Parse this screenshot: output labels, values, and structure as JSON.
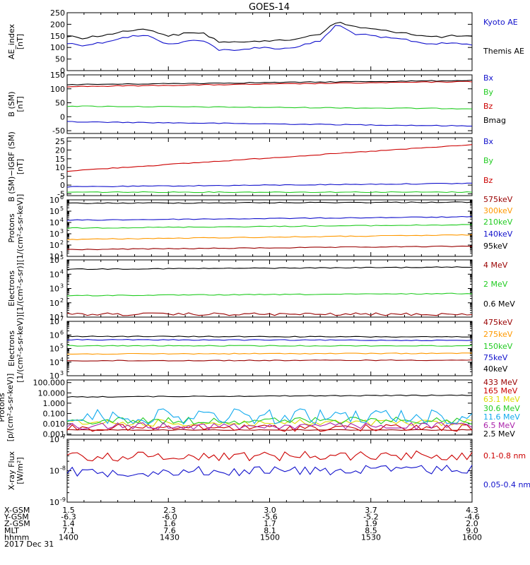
{
  "title": "GOES-14",
  "footer": {
    "rows": [
      {
        "label": "X-GSM",
        "values": [
          "1.5",
          "2.3",
          "3.0",
          "3.7",
          "4.3"
        ]
      },
      {
        "label": "Y-GSM",
        "values": [
          "-6.3",
          "-6.0",
          "-5.6",
          "-5.2",
          "-4.6"
        ]
      },
      {
        "label": "Z-GSM",
        "values": [
          "1.4",
          "1.6",
          "1.7",
          "1.9",
          "2.0"
        ]
      },
      {
        "label": "MLT",
        "values": [
          "7.1",
          "7.6",
          "8.1",
          "8.5",
          "9.0"
        ]
      },
      {
        "label": "hhmm",
        "values": [
          "1400",
          "1430",
          "1500",
          "1530",
          "1600"
        ]
      }
    ],
    "date": "2017 Dec 31"
  },
  "colors": {
    "black": "#000000",
    "red": "#cc0000",
    "green": "#22cc22",
    "blue": "#1111cc",
    "orange": "#ff9900",
    "cyan": "#11aaee",
    "yellow": "#dddd00",
    "purple": "#aa22aa",
    "maroon": "#990000"
  },
  "chart_data": [
    {
      "type": "line",
      "panel": "ae",
      "ylabel": [
        "AE_index",
        "[nT]"
      ],
      "ylim": [
        0,
        250
      ],
      "scale": "linear",
      "ticks": [
        0,
        50,
        100,
        150,
        200,
        250
      ],
      "tick_labels": [
        "0",
        "50",
        "100",
        "150",
        "200",
        "250"
      ],
      "x": [
        1400,
        1405,
        1410,
        1415,
        1420,
        1425,
        1430,
        1435,
        1440,
        1445,
        1450,
        1455,
        1500,
        1505,
        1510,
        1515,
        1520,
        1525,
        1530,
        1535,
        1540,
        1545,
        1550,
        1555,
        1600
      ],
      "series": [
        {
          "name": "Kyoto AE",
          "color": "#1111cc",
          "values": [
            118,
            110,
            120,
            138,
            150,
            148,
            112,
            125,
            135,
            90,
            85,
            100,
            98,
            95,
            110,
            128,
            200,
            160,
            150,
            140,
            135,
            120,
            115,
            120,
            110
          ]
        },
        {
          "name": "Themis AE",
          "color": "#000000",
          "values": [
            150,
            140,
            150,
            165,
            178,
            175,
            150,
            160,
            165,
            125,
            120,
            130,
            130,
            128,
            145,
            160,
            210,
            190,
            180,
            170,
            165,
            150,
            145,
            150,
            145
          ]
        }
      ]
    },
    {
      "type": "line",
      "panel": "bsm",
      "ylabel": [
        "B (SM)",
        "[nT]"
      ],
      "ylim": [
        -60,
        150
      ],
      "scale": "linear",
      "ticks": [
        -50,
        0,
        50,
        100,
        150
      ],
      "tick_labels": [
        "-50",
        "0",
        "50",
        "100",
        "150"
      ],
      "x": [
        1400,
        1600
      ],
      "series": [
        {
          "name": "Bx",
          "color": "#1111cc",
          "values": [
            -18,
            -33
          ]
        },
        {
          "name": "By",
          "color": "#22cc22",
          "values": [
            38,
            29
          ]
        },
        {
          "name": "Bz",
          "color": "#cc0000",
          "values": [
            108,
            126
          ]
        },
        {
          "name": "Bmag",
          "color": "#000000",
          "values": [
            115,
            130
          ]
        }
      ]
    },
    {
      "type": "line",
      "panel": "bigrf",
      "ylabel": [
        "B (SM)−IGRF (SM)",
        "[nT]"
      ],
      "ylim": [
        -6,
        27
      ],
      "scale": "linear",
      "ticks": [
        -5,
        0,
        5,
        10,
        15,
        20,
        25
      ],
      "tick_labels": [
        "-5",
        "0",
        "5",
        "10",
        "15",
        "20",
        "25"
      ],
      "x": [
        1400,
        1600
      ],
      "series": [
        {
          "name": "Bx",
          "color": "#1111cc",
          "values": [
            -1,
            1
          ]
        },
        {
          "name": "By",
          "color": "#22cc22",
          "values": [
            -4,
            -4
          ]
        },
        {
          "name": "Bz",
          "color": "#cc0000",
          "values": [
            8,
            23
          ]
        }
      ]
    },
    {
      "type": "line",
      "panel": "protons_kev",
      "ylabel": [
        "Protons",
        "[1/(cm²-s-sr-keV)]"
      ],
      "ylim": [
        1,
        6
      ],
      "scale": "log",
      "ticks": [
        1,
        2,
        3,
        4,
        5,
        6
      ],
      "tick_labels": [
        "10",
        "10",
        "10",
        "10",
        "10",
        "10"
      ],
      "tick_sups": [
        "1",
        "2",
        "3",
        "4",
        "5",
        "6"
      ],
      "x": [
        1400,
        1600
      ],
      "series": [
        {
          "name": "575keV",
          "color": "#990000",
          "values": [
            1.6,
            1.9
          ]
        },
        {
          "name": "300keV",
          "color": "#ff9900",
          "values": [
            2.5,
            2.9
          ]
        },
        {
          "name": "210keV",
          "color": "#22cc22",
          "values": [
            3.5,
            3.8
          ]
        },
        {
          "name": "140keV",
          "color": "#1111cc",
          "values": [
            4.2,
            4.5
          ]
        },
        {
          "name": "95keV",
          "color": "#000000",
          "values": [
            5.7,
            5.8
          ]
        }
      ]
    },
    {
      "type": "line",
      "panel": "electrons_mev",
      "ylabel": [
        "Electrons",
        "[1/(cm²-s-sr)]"
      ],
      "ylim": [
        1,
        5
      ],
      "scale": "log",
      "ticks": [
        1,
        2,
        3,
        4,
        5
      ],
      "tick_labels": [
        "10",
        "10",
        "10",
        "10",
        "10"
      ],
      "tick_sups": [
        "1",
        "2",
        "3",
        "4",
        "5"
      ],
      "x": [
        1400,
        1600
      ],
      "series": [
        {
          "name": "4 MeV",
          "color": "#990000",
          "values": [
            1.2,
            1.2
          ]
        },
        {
          "name": "2 MeV",
          "color": "#22cc22",
          "values": [
            2.5,
            2.65
          ]
        },
        {
          "name": "0.6 MeV",
          "color": "#000000",
          "values": [
            4.35,
            4.5
          ]
        }
      ]
    },
    {
      "type": "line",
      "panel": "electrons_kev",
      "ylabel": [
        "Electrons",
        "[1/(cm²-s-sr-keV)]"
      ],
      "ylim": [
        3,
        7
      ],
      "scale": "log",
      "ticks": [
        3,
        4,
        5,
        6,
        7
      ],
      "tick_labels": [
        "10",
        "10",
        "10",
        "10",
        "10"
      ],
      "tick_sups": [
        "3",
        "4",
        "5",
        "6",
        "7"
      ],
      "x": [
        1400,
        1600
      ],
      "series": [
        {
          "name": "475keV",
          "color": "#990000",
          "values": [
            4.1,
            4.15
          ]
        },
        {
          "name": "275keV",
          "color": "#ff9900",
          "values": [
            4.6,
            4.65
          ]
        },
        {
          "name": "150keV",
          "color": "#22cc22",
          "values": [
            5.2,
            5.2
          ]
        },
        {
          "name": "75keV",
          "color": "#1111cc",
          "values": [
            5.65,
            5.6
          ]
        },
        {
          "name": "40keV",
          "color": "#000000",
          "values": [
            5.9,
            5.85
          ]
        }
      ]
    },
    {
      "type": "line",
      "panel": "protons_mev",
      "ylabel": [
        "Protons",
        "[p/(cm²-s-sr-keV)]"
      ],
      "ylim": [
        0.0008,
        180
      ],
      "scale": "log",
      "ticks": [
        0.001,
        0.01,
        0.1,
        1,
        10,
        100
      ],
      "tick_labels": [
        "0.001",
        "0.010",
        "0.100",
        "1.000",
        "10.000",
        "100.000"
      ],
      "x": [
        1400,
        1600
      ],
      "series": [
        {
          "name": "433 MeV",
          "color": "#990000",
          "values": [
            0.0025,
            0.0025
          ]
        },
        {
          "name": "165 MeV",
          "color": "#cc0000",
          "values": [
            0.004,
            0.004
          ]
        },
        {
          "name": "63.1 MeV",
          "color": "#dddd00",
          "values": [
            0.012,
            0.012
          ]
        },
        {
          "name": "30.6 MeV",
          "color": "#22cc22",
          "values": [
            0.02,
            0.02
          ]
        },
        {
          "name": "11.6 MeV",
          "color": "#11aaee",
          "values": [
            0.05,
            0.05
          ]
        },
        {
          "name": "6.5 MeV",
          "color": "#aa22aa",
          "values": [
            0.006,
            0.006
          ]
        },
        {
          "name": "2.5 MeV",
          "color": "#000000",
          "values": [
            4.0,
            6.0
          ]
        }
      ]
    },
    {
      "type": "line",
      "panel": "xray",
      "ylabel": [
        "X-ray Flux",
        "[W/m²]"
      ],
      "ylim": [
        -9,
        -7
      ],
      "scale": "log",
      "ticks": [
        -9,
        -8,
        -7
      ],
      "tick_labels": [
        "10",
        "10",
        "10"
      ],
      "tick_sups": [
        "-9",
        "-8",
        "-7"
      ],
      "x": [
        1400,
        1600
      ],
      "series": [
        {
          "name": "0.1-0.8 nm",
          "color": "#cc0000",
          "values": [
            -7.55,
            -7.5
          ]
        },
        {
          "name": "0.05-0.4 nm",
          "color": "#1111cc",
          "values": [
            -8.05,
            -7.95
          ]
        }
      ]
    }
  ]
}
